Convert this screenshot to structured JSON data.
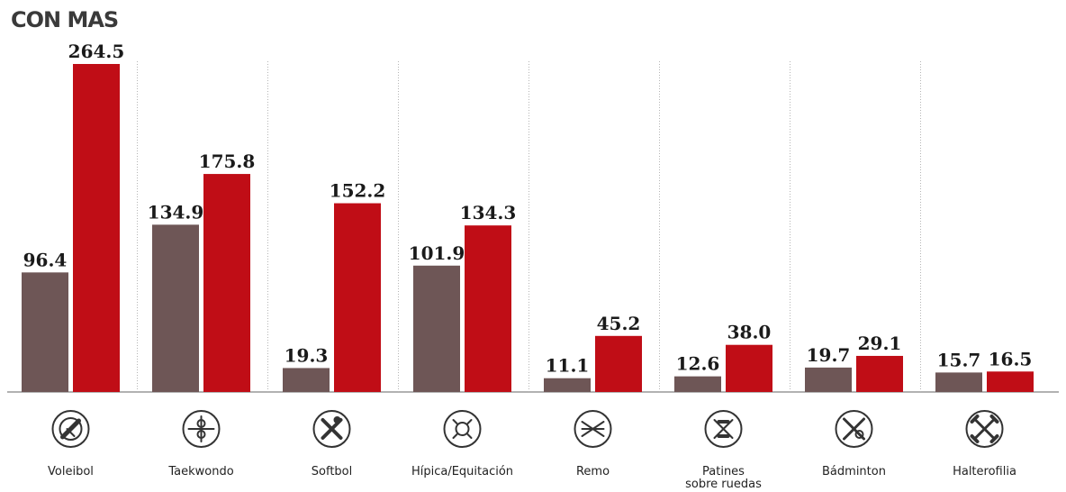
{
  "title": "CON MAS",
  "chart_data": {
    "type": "bar",
    "title": "CON MAS",
    "xlabel": "",
    "ylabel": "",
    "ylim": [
      0,
      280
    ],
    "grid": false,
    "categories": [
      "Voleibol",
      "Taekwondo",
      "Softbol",
      "Hípica/Equitación",
      "Remo",
      "Patines sobre ruedas",
      "Bádminton",
      "Halterofilia"
    ],
    "category_lines": [
      [
        "Voleibol"
      ],
      [
        "Taekwondo"
      ],
      [
        "Softbol"
      ],
      [
        "Hípica/Equitación"
      ],
      [
        "Remo"
      ],
      [
        "Patines",
        "sobre ruedas"
      ],
      [
        "Bádminton"
      ],
      [
        "Halterofilia"
      ]
    ],
    "series": [
      {
        "values": [
          96.4,
          134.9,
          19.3,
          101.9,
          11.1,
          12.6,
          19.7,
          15.7
        ],
        "labels": [
          "96.4",
          "134.9",
          "19.3",
          "101.9",
          "11.1",
          "12.6",
          "19.7",
          "15.7"
        ],
        "color": "#6e5656"
      },
      {
        "values": [
          264.5,
          175.8,
          152.2,
          134.3,
          45.2,
          38.0,
          29.1,
          16.5
        ],
        "labels": [
          "264.5",
          "175.8",
          "152.2",
          "134.3",
          "45.2",
          "38.0",
          "29.1",
          "16.5"
        ],
        "color": "#c00d16"
      }
    ],
    "icons": [
      "volleyball-icon",
      "taekwondo-icon",
      "softball-icon",
      "equestrian-icon",
      "rowing-icon",
      "roller-skates-icon",
      "badminton-icon",
      "weightlifting-icon"
    ]
  }
}
